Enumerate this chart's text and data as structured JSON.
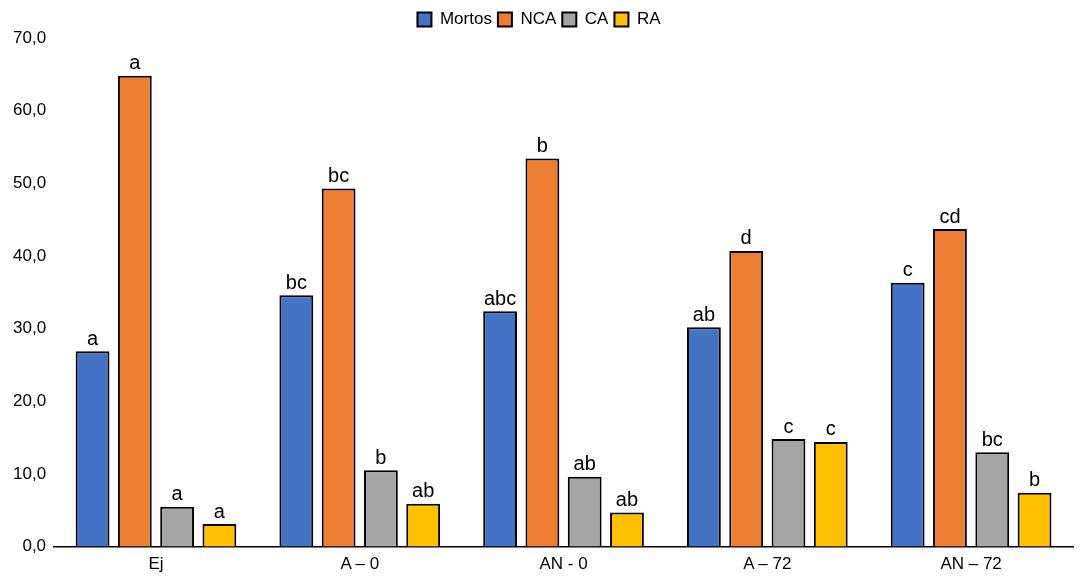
{
  "chart_data": {
    "type": "bar",
    "categories": [
      "Ej",
      "A – 0",
      "AN - 0",
      "A – 72",
      "AN – 72"
    ],
    "series": [
      {
        "name": "Mortos",
        "color": "#4472c4",
        "values": [
          26.9,
          34.6,
          32.4,
          30.2,
          36.3
        ],
        "value_labels": [
          "a",
          "bc",
          "abc",
          "ab",
          "c"
        ]
      },
      {
        "name": "NCA",
        "color": "#ed7d31",
        "values": [
          64.8,
          49.3,
          53.4,
          40.7,
          43.7
        ],
        "value_labels": [
          "a",
          "bc",
          "b",
          "d",
          "cd"
        ]
      },
      {
        "name": "CA",
        "color": "#a5a5a5",
        "values": [
          5.5,
          10.5,
          9.6,
          14.8,
          13.0
        ],
        "value_labels": [
          "a",
          "b",
          "ab",
          "c",
          "bc"
        ]
      },
      {
        "name": "RA",
        "color": "#ffc000",
        "values": [
          3.1,
          5.9,
          4.7,
          14.4,
          7.4
        ],
        "value_labels": [
          "a",
          "ab",
          "ab",
          "c",
          "b"
        ]
      }
    ],
    "ylim": [
      0,
      70
    ],
    "yticks": [
      {
        "value": 0,
        "label": "0,0"
      },
      {
        "value": 10,
        "label": "10,0"
      },
      {
        "value": 20,
        "label": "20,0"
      },
      {
        "value": 30,
        "label": "30,0"
      },
      {
        "value": 40,
        "label": "40,0"
      },
      {
        "value": 50,
        "label": "50,0"
      },
      {
        "value": 60,
        "label": "60,0"
      },
      {
        "value": 70,
        "label": "70,0"
      }
    ],
    "grid": false,
    "legend": "top"
  }
}
